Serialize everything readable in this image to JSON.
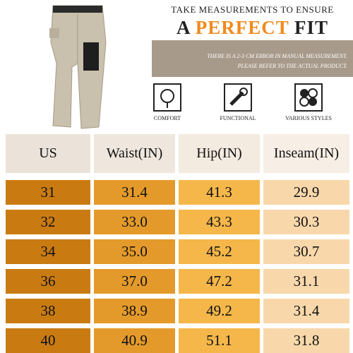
{
  "header": {
    "title_line1": "TAKE MEASUREMENTS TO ENSURE",
    "title_a": "A",
    "title_perfect": "PERFECT",
    "title_fit": "FIT",
    "notice_line1": "THERE IS A 2-3 CM ERROR IN MANUAL MEASUREMENT.",
    "notice_line2": "PLEASE REFER TO THE ACTUAL PRODUCT."
  },
  "features": [
    {
      "label": "COMFORT"
    },
    {
      "label": "FUNCTIONAL"
    },
    {
      "label": "VARIOUS STYLES"
    }
  ],
  "table": {
    "columns": [
      "US",
      "Waist(IN)",
      "Hip(IN)",
      "Inseam(IN)"
    ],
    "rows": [
      [
        "31",
        "31.4",
        "41.3",
        "29.9"
      ],
      [
        "32",
        "33.0",
        "43.3",
        "30.3"
      ],
      [
        "34",
        "35.0",
        "45.2",
        "30.7"
      ],
      [
        "36",
        "37.0",
        "47.2",
        "31.1"
      ],
      [
        "38",
        "38.9",
        "49.2",
        "31.4"
      ],
      [
        "40",
        "40.9",
        "51.1",
        "31.8"
      ]
    ]
  }
}
